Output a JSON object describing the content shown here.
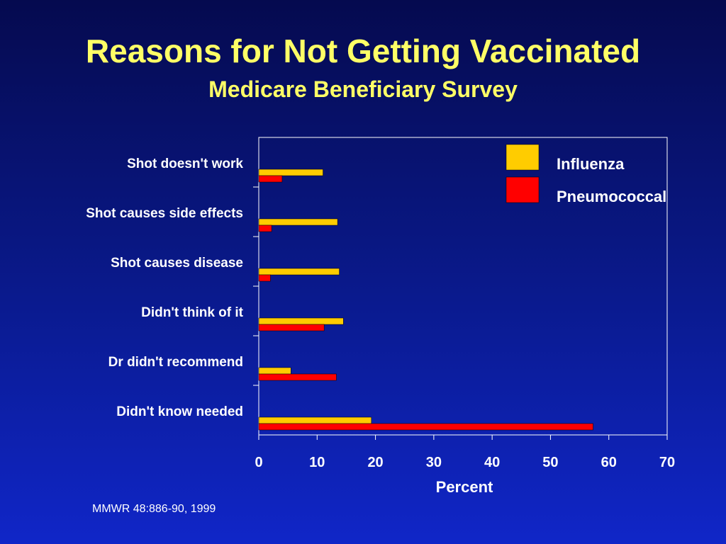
{
  "slide": {
    "title": "Reasons for Not Getting Vaccinated",
    "subtitle": "Medicare Beneficiary Survey",
    "source": "MMWR 48:886-90, 1999"
  },
  "colors": {
    "influenza": "#ffcc00",
    "pneumococcal": "#ff0000",
    "background": "#0a1a8e",
    "title": "#ffff66"
  },
  "chart_data": {
    "type": "bar",
    "orientation": "horizontal",
    "categories": [
      "Shot doesn't work",
      "Shot causes side effects",
      "Shot causes disease",
      "Didn't think of it",
      "Dr didn't recommend",
      "Didn't know needed"
    ],
    "series": [
      {
        "name": "Influenza",
        "values": [
          11,
          13.5,
          13.8,
          14.5,
          5.5,
          19.3
        ]
      },
      {
        "name": "Pneumococcal",
        "values": [
          4,
          2.2,
          2,
          11.2,
          13.3,
          57.3
        ]
      }
    ],
    "xlabel": "Percent",
    "xlim": [
      0,
      70
    ],
    "xticks": [
      "0",
      "10",
      "20",
      "30",
      "40",
      "50",
      "60",
      "70"
    ],
    "legend_position": "top-right",
    "grid": false
  }
}
